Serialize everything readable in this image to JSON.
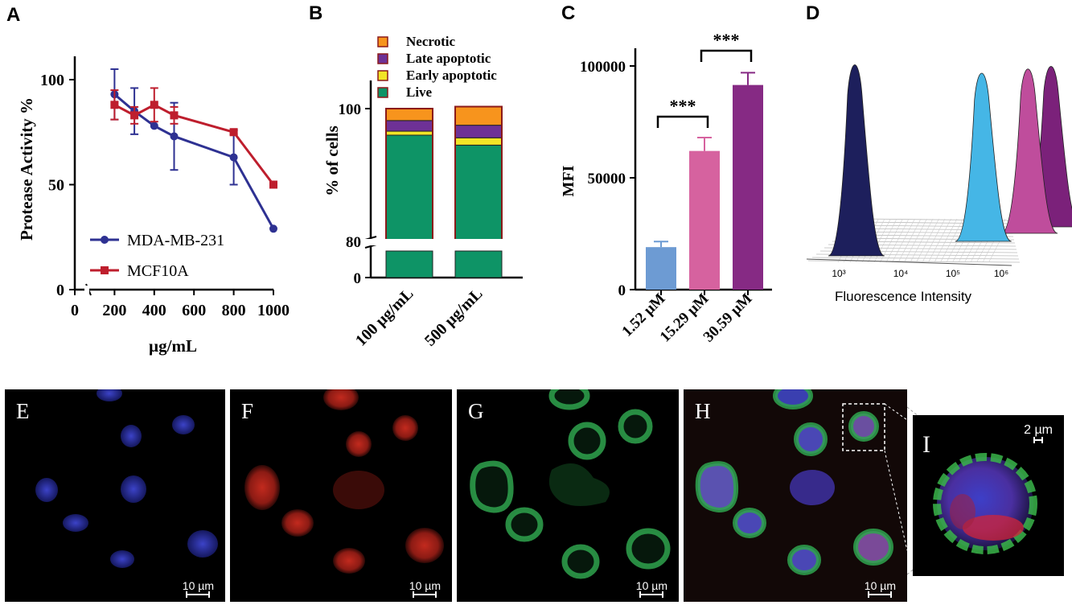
{
  "chart_data": [
    {
      "panel": "A",
      "type": "line",
      "xlabel": "µg/mL",
      "ylabel": "Protease Activity %",
      "xlim": [
        0,
        1000
      ],
      "ylim": [
        0,
        110
      ],
      "xticks": [
        "0",
        "200",
        "400",
        "600",
        "800",
        "1000"
      ],
      "yticks": [
        "0",
        "50",
        "100"
      ],
      "legend_position": "bottom-left",
      "series": [
        {
          "name": "MDA-MB-231",
          "color": "#2e3192",
          "marker": "circle",
          "x": [
            200,
            300,
            400,
            500,
            800,
            1000
          ],
          "y": [
            93,
            85,
            78,
            73,
            63,
            29
          ],
          "err": [
            12,
            11,
            0,
            16,
            13,
            0
          ]
        },
        {
          "name": "MCF10A",
          "color": "#be1e2d",
          "marker": "square",
          "x": [
            200,
            300,
            400,
            500,
            800,
            1000
          ],
          "y": [
            88,
            83,
            88,
            83,
            75,
            50
          ],
          "err": [
            7,
            4,
            8,
            4,
            1,
            0
          ]
        }
      ]
    },
    {
      "panel": "B",
      "type": "bar",
      "stacked": true,
      "ylabel": "% of cells",
      "categories": [
        "100 µg/mL",
        "500 µg/mL"
      ],
      "yticks": [
        "0",
        "80",
        "100"
      ],
      "axis_break": true,
      "legend_position": "top",
      "series": [
        {
          "name": "Live",
          "color": "#0e9466",
          "values": [
            96.0,
            94.5
          ]
        },
        {
          "name": "Early apoptotic",
          "color": "#f2e526",
          "values": [
            0.6,
            1.1
          ]
        },
        {
          "name": "Late apoptotic",
          "color": "#6e3196",
          "values": [
            1.6,
            1.9
          ]
        },
        {
          "name": "Necrotic",
          "color": "#f7941d",
          "values": [
            1.8,
            2.8
          ]
        }
      ]
    },
    {
      "panel": "C",
      "type": "bar",
      "ylabel": "MFI",
      "categories": [
        "1.52 µM",
        "15.29 µM",
        "30.59 µM"
      ],
      "values": [
        19000,
        62000,
        91500
      ],
      "err": [
        2500,
        6000,
        5500
      ],
      "colors": [
        "#6d9bd3",
        "#d6629f",
        "#862a84"
      ],
      "ylim": [
        0,
        110000
      ],
      "yticks": [
        "0",
        "50000",
        "100000"
      ],
      "significance": [
        "***",
        "***"
      ]
    },
    {
      "panel": "D",
      "type": "area",
      "xlabel": "Fluorescence Intensity",
      "xticks": [
        "10³",
        "10⁴",
        "10⁵",
        "10⁶"
      ],
      "series": [
        {
          "name": "",
          "color": "#1d1f5c",
          "peak": 700
        },
        {
          "name": "",
          "color": "#45b6e6",
          "peak": 55000
        },
        {
          "name": "",
          "color": "#bf4d9c",
          "peak": 300000
        },
        {
          "name": "",
          "color": "#7b217a",
          "peak": 700000
        }
      ]
    }
  ],
  "panels": {
    "A": "A",
    "B": "B",
    "C": "C",
    "D": "D",
    "E": "E",
    "F": "F",
    "G": "G",
    "H": "H",
    "I": "I"
  },
  "scalebars": {
    "e": "10 µm",
    "f": "10 µm",
    "g": "10 µm",
    "h": "10 µm",
    "i": "2 µm"
  }
}
